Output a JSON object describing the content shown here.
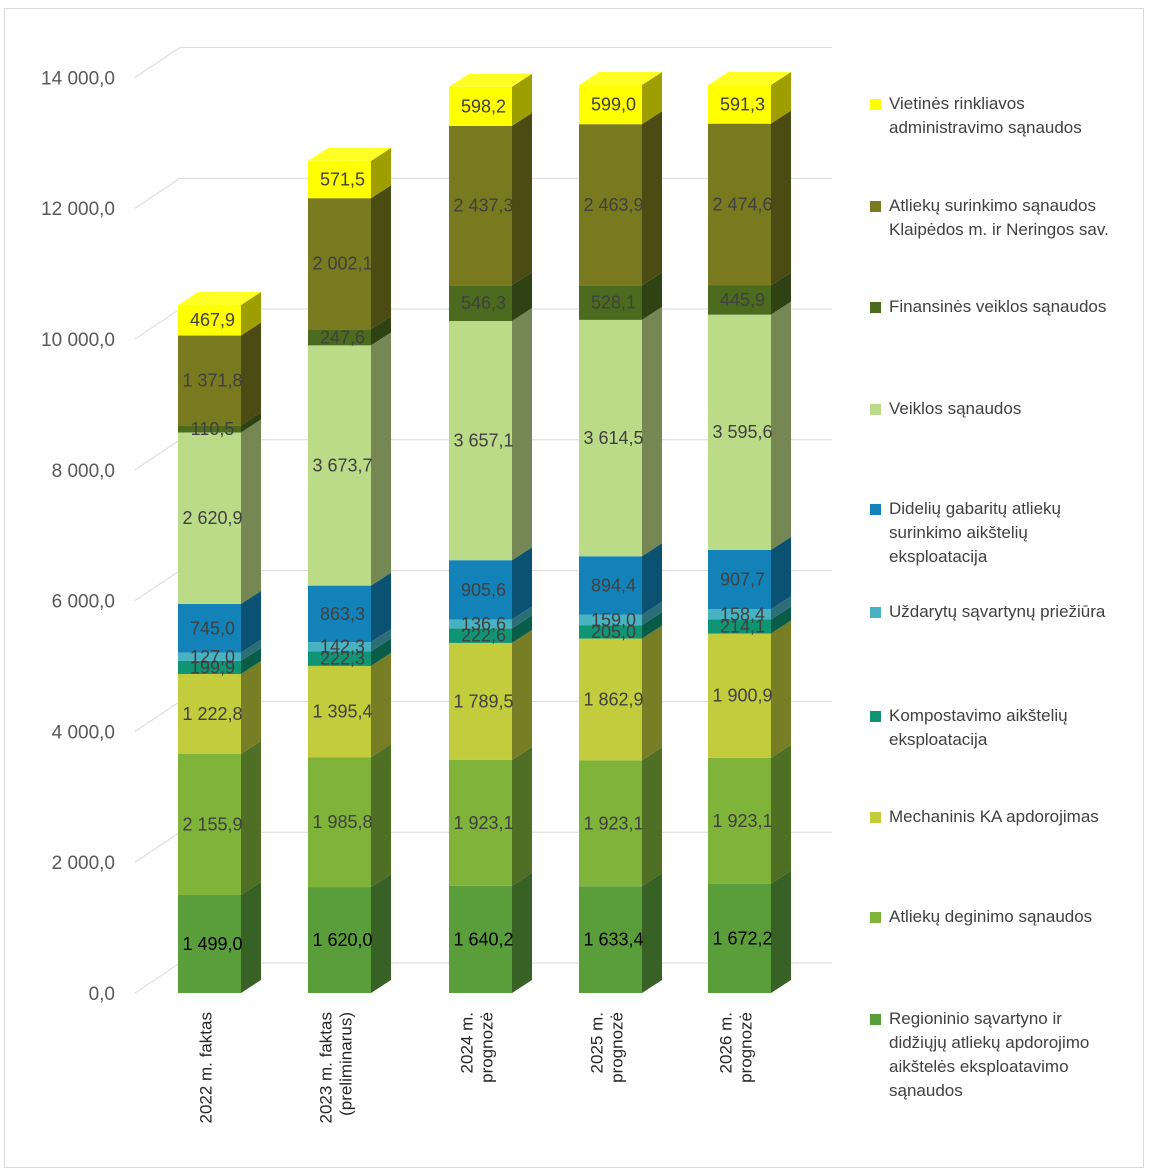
{
  "chart_data": {
    "type": "bar",
    "stacked": true,
    "three_d": true,
    "categories": [
      [
        "2022 m. faktas"
      ],
      [
        "2023 m. faktas",
        "(preliminarus)"
      ],
      [
        "2024 m.",
        "prognozė"
      ],
      [
        "2025 m.",
        "prognozė"
      ],
      [
        "2026 m.",
        "prognozė"
      ]
    ],
    "ylim": [
      0,
      14000
    ],
    "yticks": [
      "0,0",
      "2 000,0",
      "4 000,0",
      "6 000,0",
      "8 000,0",
      "10 000,0",
      "12 000,0",
      "14 000,0"
    ],
    "grid": true,
    "legend_position": "right",
    "series": [
      {
        "name": "Regioninio sąvartyno ir didžiųjų atliekų apdorojimo aikštelės eksploatavimo sąnaudos",
        "color": "#5a9e3c",
        "values": [
          1499.0,
          1620.0,
          1640.2,
          1633.4,
          1672.2
        ],
        "labels": [
          "1 499,0",
          "1 620,0",
          "1 640,2",
          "1 633,4",
          "1 672,2"
        ]
      },
      {
        "name": "Atliekų deginimo sąnaudos",
        "color": "#7fb33a",
        "values": [
          2155.9,
          1985.8,
          1923.1,
          1923.1,
          1923.1
        ],
        "labels": [
          "2 155,9",
          "1 985,8",
          "1 923,1",
          "1 923,1",
          "1 923,1"
        ]
      },
      {
        "name": "Mechaninis KA apdorojimas",
        "color": "#c2cc3d",
        "values": [
          1222.8,
          1395.4,
          1789.5,
          1862.9,
          1900.9
        ],
        "labels": [
          "1 222,8",
          "1 395,4",
          "1 789,5",
          "1 862,9",
          "1 900,9"
        ]
      },
      {
        "name": "Kompostavimo aikštelių eksploatacija",
        "color": "#0f9474",
        "values": [
          199.9,
          222.3,
          222.6,
          205.0,
          214.1
        ],
        "labels": [
          "199,9",
          "222,3",
          "222,6",
          "205,0",
          "214,1"
        ]
      },
      {
        "name": "Uždarytų sąvartynų priežiūra",
        "color": "#47b2c2",
        "values": [
          127.0,
          142.3,
          136.6,
          159.0,
          158.4
        ],
        "labels": [
          "127,0",
          "142,3",
          "136,6",
          "159,0",
          "158,4"
        ]
      },
      {
        "name": "Didelių gabaritų atliekų surinkimo aikštelių eksploatacija",
        "color": "#1282b8",
        "values": [
          745.0,
          863.3,
          905.6,
          894.4,
          907.7
        ],
        "labels": [
          "745,0",
          "863,3",
          "905,6",
          "894,4",
          "907,7"
        ]
      },
      {
        "name": "Veiklos sąnaudos",
        "color": "#bcdb88",
        "values": [
          2620.9,
          3673.7,
          3657.1,
          3614.5,
          3595.6
        ],
        "labels": [
          "2 620,9",
          "3 673,7",
          "3 657,1",
          "3 614,5",
          "3 595,6"
        ]
      },
      {
        "name": "Finansinės veiklos sąnaudos",
        "color": "#4c6b1e",
        "values": [
          110.5,
          247.6,
          546.3,
          528.1,
          445.9
        ],
        "labels": [
          "110,5",
          "247,6",
          "546,3",
          "528,1",
          "445,9"
        ]
      },
      {
        "name": "Atliekų surinkimo sąnaudos Klaipėdos m. ir Neringos sav.",
        "color": "#79791f",
        "values": [
          1371.8,
          2002.1,
          2437.3,
          2463.9,
          2474.6
        ],
        "labels": [
          "1 371,8",
          "2 002,1",
          "2 437,3",
          "2 463,9",
          "2 474,6"
        ]
      },
      {
        "name": "Vietinės rinkliavos administravimo sąnaudos",
        "color": "#ffff00",
        "values": [
          467.9,
          571.5,
          598.2,
          599.0,
          591.3
        ],
        "labels": [
          "467,9",
          "571,5",
          "598,2",
          "599,0",
          "591,3"
        ]
      }
    ],
    "legend": [
      [
        "Vietinės rinkliavos",
        "administravimo sąnaudos"
      ],
      [
        "Atliekų surinkimo sąnaudos",
        "Klaipėdos m. ir Neringos sav."
      ],
      [
        "Finansinės veiklos sąnaudos"
      ],
      [
        "Veiklos sąnaudos"
      ],
      [
        "Didelių gabaritų atliekų",
        "surinkimo aikštelių",
        "eksploatacija"
      ],
      [
        "Uždarytų sąvartynų priežiūra"
      ],
      [
        "Kompostavimo aikštelių",
        "eksploatacija"
      ],
      [
        "Mechaninis KA apdorojimas"
      ],
      [
        "Atliekų deginimo sąnaudos"
      ],
      [
        "Regioninio sąvartyno ir",
        "didžiųjų atliekų apdorojimo",
        "aikštelės eksploatavimo",
        "sąnaudos"
      ]
    ]
  }
}
